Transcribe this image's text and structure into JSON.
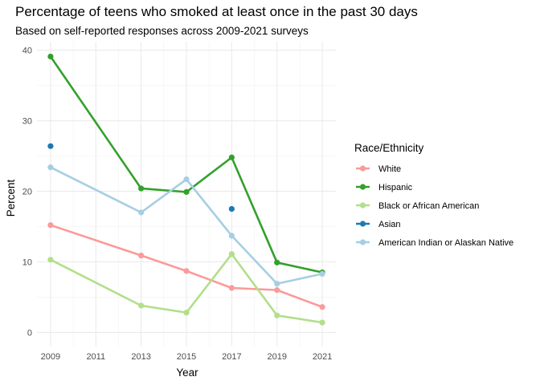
{
  "chart_data": {
    "type": "line",
    "title": "Percentage of teens who smoked at least once in the past 30 days",
    "subtitle": "Based on self-reported responses across 2009-2021 surveys",
    "xlabel": "Year",
    "ylabel": "Percent",
    "xlim": [
      2009,
      2021
    ],
    "ylim": [
      0,
      40
    ],
    "x_ticks": [
      "2009",
      "2011",
      "2013",
      "2015",
      "2017",
      "2019",
      "2021"
    ],
    "y_ticks": [
      "0",
      "10",
      "20",
      "30",
      "40"
    ],
    "grid": true,
    "legend_title": "Race/Ethnicity",
    "legend_position": "right",
    "series": [
      {
        "name": "White",
        "color": "#fb9a99",
        "points": [
          [
            2009,
            15.2
          ],
          [
            2013,
            10.9
          ],
          [
            2015,
            8.7
          ],
          [
            2017,
            6.3
          ],
          [
            2019,
            6.0
          ],
          [
            2021,
            3.6
          ]
        ]
      },
      {
        "name": "Hispanic",
        "color": "#33a02c",
        "points": [
          [
            2009,
            39.1
          ],
          [
            2013,
            20.4
          ],
          [
            2015,
            19.9
          ],
          [
            2017,
            24.8
          ],
          [
            2019,
            9.9
          ],
          [
            2021,
            8.5
          ]
        ]
      },
      {
        "name": "Black or African American",
        "color": "#b2df8a",
        "points": [
          [
            2009,
            10.3
          ],
          [
            2013,
            3.8
          ],
          [
            2015,
            2.8
          ],
          [
            2017,
            11.1
          ],
          [
            2019,
            2.4
          ],
          [
            2021,
            1.4
          ]
        ]
      },
      {
        "name": "Asian",
        "color": "#1f78b4",
        "points": [
          [
            2009,
            26.4
          ],
          [
            2017,
            17.5
          ]
        ]
      },
      {
        "name": "American Indian or Alaskan Native",
        "color": "#a6cee3",
        "points": [
          [
            2009,
            23.4
          ],
          [
            2013,
            17.0
          ],
          [
            2015,
            21.7
          ],
          [
            2017,
            13.7
          ],
          [
            2019,
            6.9
          ],
          [
            2021,
            8.3
          ]
        ]
      }
    ]
  }
}
